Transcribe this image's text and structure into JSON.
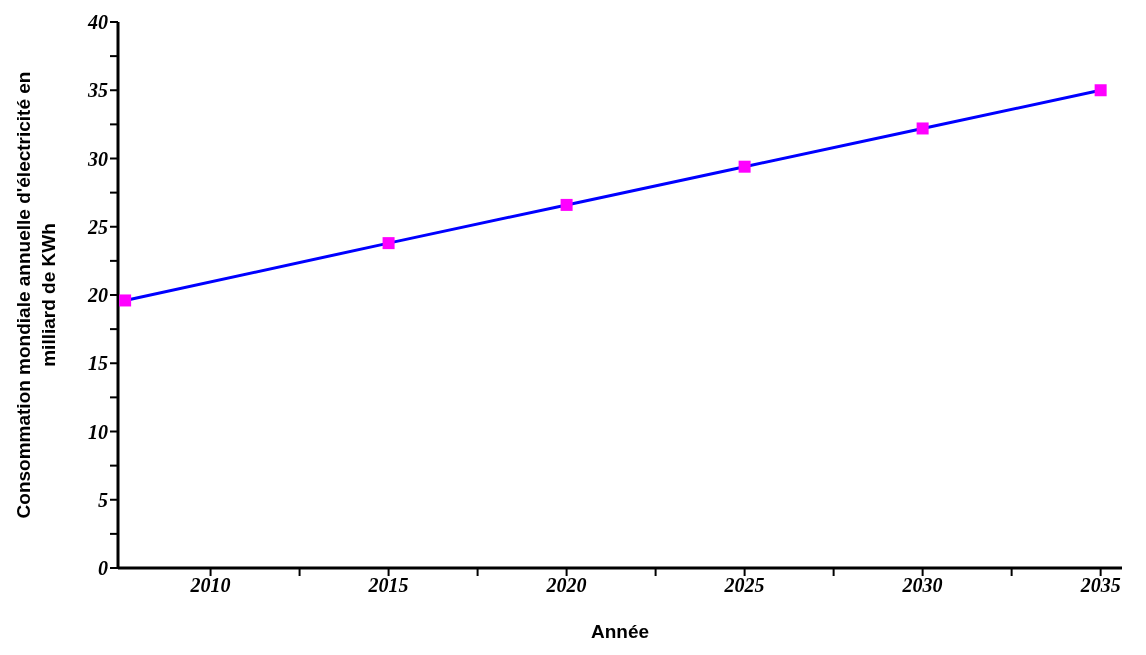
{
  "chart_data": {
    "type": "line",
    "xlabel": "Année",
    "ylabel": "Consommation mondiale annuelle d'électricité en milliard de KWh",
    "x": [
      2007.6,
      2015,
      2020,
      2025,
      2030,
      2035
    ],
    "series": [
      {
        "color": "#0000ff",
        "values": [
          19.6,
          23.8,
          26.6,
          29.4,
          32.2,
          35.0
        ]
      }
    ],
    "marker": "square",
    "line_style": "solid",
    "grid": false,
    "legend": false,
    "xlim": [
      2007.4,
      2035.6
    ],
    "xticks": [
      2010,
      {
        "value": 2012.5,
        "label": null
      },
      2015,
      {
        "value": 2017.5,
        "label": null
      },
      2020,
      {
        "value": 2022.5,
        "label": null
      },
      2025,
      {
        "value": 2027.5,
        "label": null
      },
      2030,
      {
        "value": 2032.5,
        "label": null
      },
      2035
    ],
    "ylim": [
      0,
      40
    ],
    "yticks": [
      0,
      {
        "value": 2.5,
        "label": null
      },
      5,
      {
        "value": 7.5,
        "label": null
      },
      10,
      {
        "value": 12.5,
        "label": null
      },
      15,
      {
        "value": 17.5,
        "label": null
      },
      20,
      {
        "value": 22.5,
        "label": null
      },
      25,
      {
        "value": 27.5,
        "label": null
      },
      30,
      {
        "value": 32.5,
        "label": null
      },
      35,
      {
        "value": 37.5,
        "label": null
      },
      40
    ]
  }
}
